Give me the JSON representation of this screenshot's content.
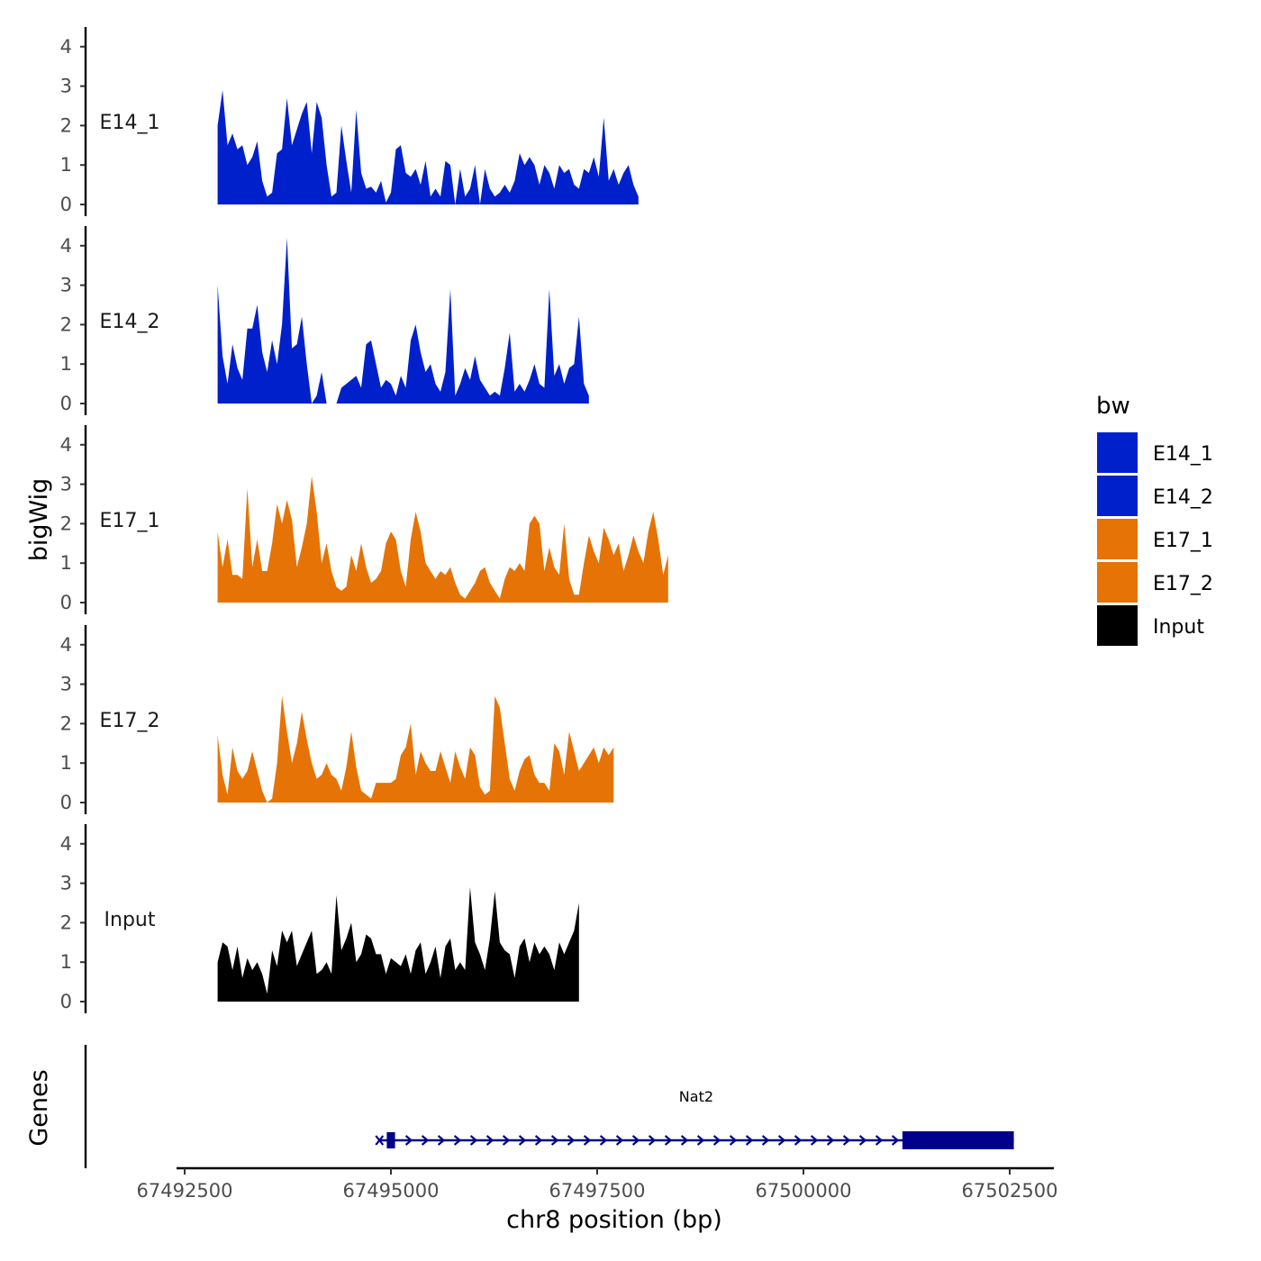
{
  "chart_data": {
    "type": "area",
    "y_axis_title": "bigWig",
    "gene_axis_title": "Genes",
    "xlabel": "chr8 position (bp)",
    "xlim": [
      67492400,
      67502600
    ],
    "x_ticks": [
      67492500,
      67495000,
      67497500,
      67500000,
      67502500
    ],
    "x_tick_labels": [
      "67492500",
      "67495000",
      "67497500",
      "67500000",
      "67502500"
    ],
    "ylim": [
      0,
      4.5
    ],
    "y_ticks": [
      0,
      1,
      2,
      3,
      4
    ],
    "legend": {
      "title": "bw",
      "position": "right",
      "entries": [
        {
          "label": "E14_1",
          "color": "#0020CC"
        },
        {
          "label": "E14_2",
          "color": "#0020CC"
        },
        {
          "label": "E17_1",
          "color": "#E67305"
        },
        {
          "label": "E17_2",
          "color": "#E67305"
        },
        {
          "label": "Input",
          "color": "#000000"
        }
      ]
    },
    "track_x_start": 67492900,
    "track_x_step": 60,
    "series": [
      {
        "name": "E14_1",
        "color": "#0020CC",
        "values": [
          2.0,
          2.9,
          1.5,
          1.8,
          1.4,
          1.5,
          1.0,
          1.2,
          1.6,
          0.6,
          0.2,
          0.3,
          1.3,
          1.4,
          2.7,
          1.5,
          1.9,
          2.3,
          2.6,
          1.3,
          2.6,
          2.2,
          1.0,
          0.2,
          0.3,
          2.0,
          1.1,
          0.3,
          2.4,
          0.8,
          0.4,
          0.45,
          0.3,
          0.6,
          0.05,
          0.3,
          1.4,
          1.5,
          0.8,
          0.7,
          0.9,
          0.5,
          1.1,
          0.2,
          0.4,
          0.2,
          1.1,
          1.0,
          0.0,
          0.9,
          0.2,
          0.4,
          1.0,
          0.0,
          0.9,
          0.4,
          0.2,
          0.3,
          0.5,
          0.3,
          0.6,
          1.3,
          1.0,
          1.2,
          1.0,
          0.5,
          1.0,
          0.8,
          0.4,
          1.0,
          0.8,
          0.9,
          0.5,
          0.4,
          0.9,
          0.8,
          1.2,
          0.7,
          2.2,
          0.6,
          0.9,
          0.5,
          0.8,
          1.0,
          0.5,
          0.2
        ]
      },
      {
        "name": "E14_2",
        "color": "#0020CC",
        "values": [
          3.0,
          1.2,
          0.5,
          1.5,
          0.9,
          0.6,
          1.9,
          1.9,
          2.5,
          1.3,
          0.8,
          1.6,
          1.0,
          2.0,
          4.2,
          1.4,
          1.5,
          2.2,
          1.0,
          0.0,
          0.2,
          0.8,
          0.0,
          0.0,
          0.0,
          0.4,
          0.5,
          0.6,
          0.7,
          0.4,
          1.5,
          1.6,
          1.0,
          0.4,
          0.6,
          0.5,
          0.2,
          0.7,
          0.4,
          1.6,
          2.0,
          1.3,
          0.8,
          1.0,
          0.5,
          0.3,
          0.8,
          2.9,
          0.2,
          0.5,
          0.9,
          0.6,
          1.2,
          0.6,
          0.4,
          0.2,
          0.3,
          0.2,
          0.9,
          1.8,
          0.3,
          0.5,
          0.3,
          0.6,
          1.0,
          0.5,
          0.4,
          2.9,
          0.7,
          1.0,
          0.5,
          0.9,
          1.0,
          2.2,
          0.5,
          0.2
        ]
      },
      {
        "name": "E17_1",
        "color": "#E67305",
        "values": [
          1.8,
          0.9,
          1.6,
          0.7,
          0.7,
          0.6,
          2.9,
          0.9,
          1.6,
          0.8,
          0.8,
          1.5,
          2.5,
          2.0,
          2.6,
          2.1,
          0.9,
          1.4,
          2.0,
          3.2,
          2.3,
          1.0,
          1.5,
          0.8,
          0.4,
          0.3,
          0.4,
          1.2,
          0.8,
          1.5,
          0.9,
          0.5,
          0.6,
          0.8,
          1.5,
          1.8,
          1.6,
          0.8,
          0.4,
          1.6,
          2.3,
          1.8,
          1.0,
          0.8,
          0.6,
          0.8,
          0.7,
          0.9,
          0.5,
          0.2,
          0.1,
          0.3,
          0.5,
          0.8,
          0.9,
          0.5,
          0.3,
          0.1,
          0.6,
          0.9,
          0.8,
          1.0,
          0.8,
          2.0,
          2.2,
          2.0,
          0.8,
          1.4,
          0.9,
          0.7,
          2.0,
          0.6,
          0.2,
          0.2,
          1.0,
          1.7,
          1.3,
          1.0,
          1.9,
          1.6,
          1.2,
          1.5,
          0.8,
          1.2,
          1.7,
          1.3,
          1.0,
          1.8,
          2.3,
          1.6,
          0.7,
          1.2
        ]
      },
      {
        "name": "E17_2",
        "color": "#E67305",
        "values": [
          1.7,
          0.7,
          0.2,
          1.4,
          0.8,
          0.6,
          0.8,
          1.3,
          0.8,
          0.3,
          0.0,
          0.1,
          1.0,
          2.7,
          1.8,
          1.0,
          1.5,
          2.3,
          1.6,
          1.0,
          0.6,
          0.7,
          1.0,
          0.7,
          0.6,
          0.3,
          0.9,
          1.8,
          0.9,
          0.3,
          0.2,
          0.1,
          0.5,
          0.5,
          0.5,
          0.5,
          0.6,
          1.2,
          1.4,
          2.0,
          0.7,
          1.3,
          1.0,
          0.8,
          0.8,
          1.3,
          0.9,
          0.5,
          1.3,
          0.9,
          0.6,
          1.4,
          1.2,
          0.4,
          0.2,
          0.3,
          2.7,
          2.4,
          1.5,
          0.6,
          0.3,
          0.8,
          1.1,
          1.2,
          0.7,
          0.5,
          0.5,
          0.3,
          1.5,
          1.3,
          0.7,
          1.8,
          1.3,
          0.8,
          1.0,
          1.2,
          1.4,
          1.0,
          1.4,
          1.2,
          1.4
        ]
      },
      {
        "name": "Input",
        "color": "#000000",
        "values": [
          1.0,
          1.5,
          1.4,
          0.8,
          1.4,
          0.6,
          1.1,
          0.8,
          1.0,
          0.7,
          0.2,
          1.3,
          0.9,
          1.8,
          1.5,
          1.8,
          0.9,
          1.2,
          1.5,
          1.8,
          0.7,
          0.8,
          1.0,
          0.7,
          2.7,
          1.3,
          1.6,
          2.0,
          1.0,
          1.2,
          1.7,
          1.6,
          1.2,
          1.2,
          0.7,
          1.1,
          1.0,
          0.9,
          1.2,
          0.7,
          1.3,
          1.5,
          0.7,
          1.0,
          1.4,
          0.6,
          1.4,
          1.6,
          0.8,
          1.0,
          0.8,
          2.9,
          1.5,
          1.2,
          0.8,
          1.6,
          2.8,
          1.5,
          1.3,
          1.2,
          0.6,
          1.4,
          1.6,
          1.0,
          1.5,
          1.2,
          1.4,
          1.2,
          0.8,
          1.5,
          1.2,
          1.5,
          1.8,
          2.5
        ]
      }
    ],
    "gene": {
      "name": "Nat2",
      "strand": "+",
      "color": "#00008B",
      "start": 67494850,
      "end": 67502550,
      "small_exon": [
        67494950,
        67495050
      ],
      "coding_exon": [
        67501200,
        67502550
      ]
    }
  }
}
